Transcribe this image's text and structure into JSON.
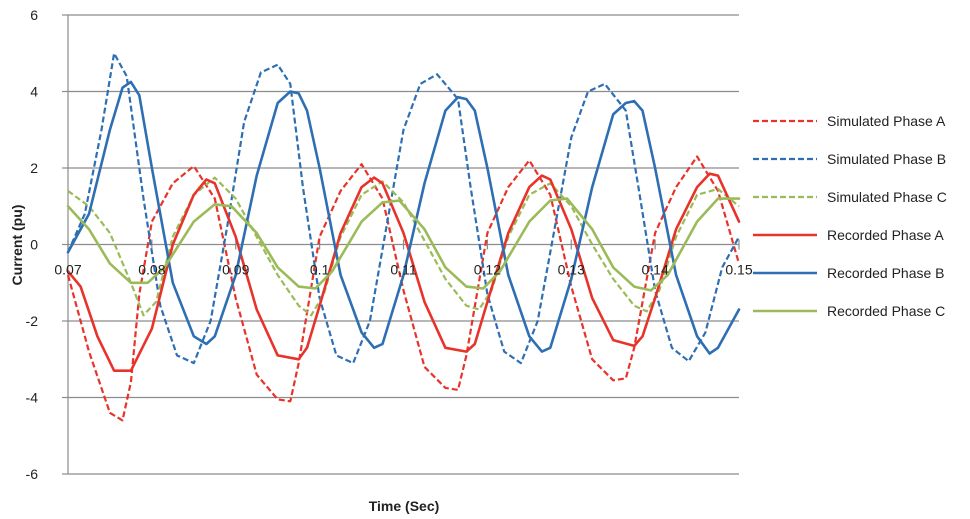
{
  "chart_data": {
    "type": "line",
    "title": "",
    "xlabel": "Time (Sec)",
    "ylabel": "Current (pu)",
    "xlim": [
      0.07,
      0.15
    ],
    "ylim": [
      -6,
      6
    ],
    "xticks": [
      0.07,
      0.08,
      0.09,
      0.1,
      0.11,
      0.12,
      0.13,
      0.14,
      0.15
    ],
    "xtick_labels": [
      "0.07",
      "0.08",
      "0.09",
      "0.1",
      "0.11",
      "0.12",
      "0.13",
      "0.14",
      "0.15"
    ],
    "yticks": [
      -6,
      -4,
      -2,
      0,
      2,
      4,
      6
    ],
    "ytick_labels": [
      "-6",
      "-4",
      "-2",
      "0",
      "2",
      "4",
      "6"
    ],
    "grid": "horizontal",
    "legend_position": "right",
    "series": [
      {
        "name": "Simulated Phase A",
        "color": "#e8332a",
        "dash": "dashed",
        "x": [
          0.07,
          0.0725,
          0.075,
          0.0765,
          0.0775,
          0.0785,
          0.08,
          0.0825,
          0.085,
          0.0875,
          0.09,
          0.0925,
          0.095,
          0.0965,
          0.0975,
          0.1,
          0.1025,
          0.105,
          0.1075,
          0.11,
          0.1125,
          0.115,
          0.1165,
          0.1175,
          0.12,
          0.1225,
          0.125,
          0.1275,
          0.13,
          0.1325,
          0.135,
          0.1365,
          0.1375,
          0.14,
          0.1425,
          0.145,
          0.1475,
          0.15
        ],
        "y": [
          -0.8,
          -2.8,
          -4.4,
          -4.6,
          -3.6,
          -1.3,
          0.6,
          1.6,
          2.05,
          1.2,
          -1.4,
          -3.4,
          -4.05,
          -4.1,
          -3.1,
          0.2,
          1.4,
          2.1,
          1.2,
          -1.2,
          -3.2,
          -3.75,
          -3.8,
          -2.9,
          0.3,
          1.5,
          2.2,
          1.3,
          -1.1,
          -3.0,
          -3.55,
          -3.5,
          -2.7,
          0.3,
          1.5,
          2.3,
          1.4,
          -0.5
        ]
      },
      {
        "name": "Simulated Phase B",
        "color": "#2e6fb4",
        "dash": "dashed",
        "x": [
          0.07,
          0.072,
          0.074,
          0.0755,
          0.077,
          0.079,
          0.081,
          0.083,
          0.085,
          0.087,
          0.089,
          0.091,
          0.093,
          0.095,
          0.0965,
          0.098,
          0.1,
          0.102,
          0.104,
          0.106,
          0.108,
          0.11,
          0.112,
          0.114,
          0.1165,
          0.118,
          0.12,
          0.122,
          0.124,
          0.126,
          0.128,
          0.13,
          0.132,
          0.134,
          0.1365,
          0.138,
          0.14,
          0.142,
          0.144,
          0.146,
          0.148,
          0.15
        ],
        "y": [
          -0.2,
          0.8,
          3.0,
          5.0,
          4.4,
          1.2,
          -1.6,
          -2.9,
          -3.1,
          -2.0,
          0.5,
          3.2,
          4.5,
          4.7,
          4.2,
          1.5,
          -1.4,
          -2.9,
          -3.1,
          -2.0,
          0.5,
          3.0,
          4.2,
          4.45,
          3.8,
          1.5,
          -1.3,
          -2.8,
          -3.1,
          -2.0,
          0.4,
          2.8,
          4.0,
          4.2,
          3.5,
          1.5,
          -1.2,
          -2.7,
          -3.05,
          -2.3,
          -0.6,
          0.2
        ]
      },
      {
        "name": "Simulated Phase C",
        "color": "#9bbb59",
        "dash": "dashed",
        "x": [
          0.07,
          0.0725,
          0.075,
          0.0775,
          0.079,
          0.0805,
          0.0825,
          0.085,
          0.0875,
          0.09,
          0.0925,
          0.095,
          0.0975,
          0.099,
          0.1005,
          0.1025,
          0.105,
          0.1075,
          0.11,
          0.1125,
          0.115,
          0.1175,
          0.119,
          0.1205,
          0.1225,
          0.125,
          0.1275,
          0.13,
          0.1325,
          0.135,
          0.1375,
          0.139,
          0.1405,
          0.1425,
          0.145,
          0.1475,
          0.15
        ],
        "y": [
          1.4,
          1.0,
          0.3,
          -1.0,
          -1.85,
          -1.5,
          0.2,
          1.3,
          1.75,
          1.2,
          0.2,
          -0.8,
          -1.6,
          -1.85,
          -1.3,
          0.2,
          1.3,
          1.65,
          1.1,
          0.1,
          -0.9,
          -1.6,
          -1.7,
          -1.2,
          0.2,
          1.3,
          1.6,
          1.0,
          0.0,
          -0.9,
          -1.6,
          -1.75,
          -1.2,
          0.2,
          1.3,
          1.45,
          1.0
        ]
      },
      {
        "name": "Recorded Phase A",
        "color": "#e8332a",
        "dash": "solid",
        "x": [
          0.07,
          0.0715,
          0.0735,
          0.0755,
          0.0775,
          0.08,
          0.0825,
          0.085,
          0.0865,
          0.0875,
          0.09,
          0.0925,
          0.095,
          0.0975,
          0.0985,
          0.1,
          0.1025,
          0.105,
          0.1065,
          0.1075,
          0.11,
          0.1125,
          0.115,
          0.1175,
          0.1185,
          0.12,
          0.1225,
          0.125,
          0.1265,
          0.1275,
          0.13,
          0.1325,
          0.135,
          0.1375,
          0.1385,
          0.14,
          0.1425,
          0.145,
          0.1465,
          0.1475,
          0.15
        ],
        "y": [
          -0.7,
          -1.1,
          -2.4,
          -3.3,
          -3.3,
          -2.2,
          0.0,
          1.3,
          1.7,
          1.6,
          0.2,
          -1.7,
          -2.9,
          -3.0,
          -2.7,
          -1.6,
          0.3,
          1.5,
          1.75,
          1.6,
          0.3,
          -1.5,
          -2.7,
          -2.8,
          -2.6,
          -1.5,
          0.3,
          1.5,
          1.8,
          1.7,
          0.4,
          -1.4,
          -2.5,
          -2.65,
          -2.4,
          -1.4,
          0.4,
          1.5,
          1.85,
          1.8,
          0.6
        ]
      },
      {
        "name": "Recorded Phase B",
        "color": "#2e6fb4",
        "dash": "solid",
        "x": [
          0.07,
          0.0725,
          0.075,
          0.0765,
          0.0775,
          0.0785,
          0.08,
          0.0825,
          0.085,
          0.0865,
          0.0875,
          0.09,
          0.0925,
          0.095,
          0.0965,
          0.0975,
          0.0985,
          0.1,
          0.1025,
          0.105,
          0.1065,
          0.1075,
          0.11,
          0.1125,
          0.115,
          0.1165,
          0.1175,
          0.1185,
          0.12,
          0.1225,
          0.125,
          0.1265,
          0.1275,
          0.13,
          0.1325,
          0.135,
          0.1365,
          0.1375,
          0.1385,
          0.14,
          0.1425,
          0.145,
          0.1465,
          0.1475,
          0.15
        ],
        "y": [
          -0.2,
          0.8,
          3.0,
          4.1,
          4.25,
          3.9,
          2.0,
          -1.0,
          -2.4,
          -2.6,
          -2.4,
          -0.8,
          1.8,
          3.7,
          4.0,
          3.95,
          3.5,
          2.0,
          -0.8,
          -2.3,
          -2.7,
          -2.6,
          -0.8,
          1.6,
          3.5,
          3.85,
          3.8,
          3.5,
          2.0,
          -0.8,
          -2.4,
          -2.8,
          -2.7,
          -0.9,
          1.5,
          3.4,
          3.7,
          3.75,
          3.5,
          2.0,
          -0.8,
          -2.4,
          -2.85,
          -2.7,
          -1.7
        ]
      },
      {
        "name": "Recorded Phase C",
        "color": "#9bbb59",
        "dash": "solid",
        "x": [
          0.07,
          0.0725,
          0.075,
          0.0775,
          0.0795,
          0.0815,
          0.085,
          0.0875,
          0.0895,
          0.0925,
          0.095,
          0.0975,
          0.0995,
          0.1015,
          0.105,
          0.1075,
          0.1095,
          0.1125,
          0.115,
          0.1175,
          0.1195,
          0.1215,
          0.125,
          0.1275,
          0.1295,
          0.1325,
          0.135,
          0.1375,
          0.1395,
          0.1415,
          0.145,
          0.1475,
          0.15
        ],
        "y": [
          1.0,
          0.4,
          -0.5,
          -1.0,
          -1.0,
          -0.6,
          0.6,
          1.05,
          1.0,
          0.3,
          -0.6,
          -1.1,
          -1.15,
          -0.7,
          0.6,
          1.1,
          1.15,
          0.4,
          -0.6,
          -1.1,
          -1.15,
          -0.7,
          0.6,
          1.15,
          1.2,
          0.4,
          -0.6,
          -1.1,
          -1.2,
          -0.8,
          0.6,
          1.2,
          1.2
        ]
      }
    ]
  }
}
